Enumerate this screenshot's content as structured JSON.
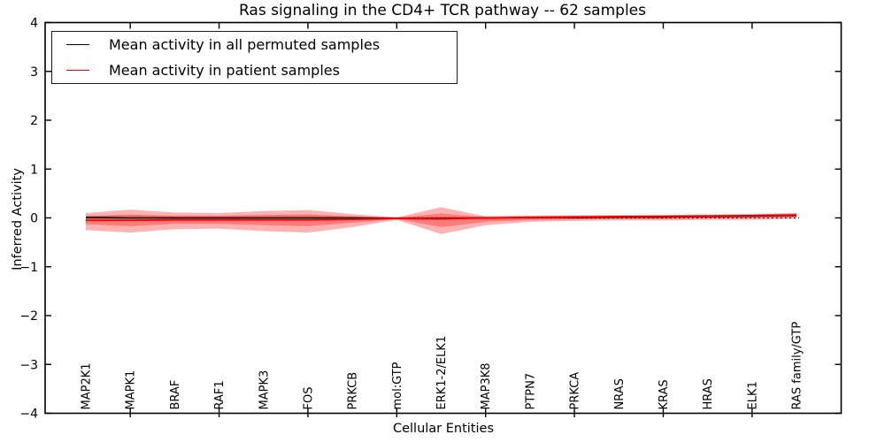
{
  "figure": {
    "title": "Ras signaling in the CD4+ TCR pathway -- 62 samples"
  },
  "legend": {
    "entries": [
      {
        "label": "Mean activity in all permuted samples",
        "color": "#000000"
      },
      {
        "label": "Mean activity in patient samples",
        "color": "#ff0000"
      }
    ]
  },
  "colors": {
    "permuted_line": "#000000",
    "patient_line": "#ff0000",
    "patient_band": "#ff0000",
    "permuted_band": "#000000",
    "zero_line": "#111111",
    "axis": "#000000"
  },
  "chart_data": {
    "type": "line",
    "title": "Ras signaling in the CD4+ TCR pathway -- 62 samples",
    "xlabel": "Cellular Entities",
    "ylabel": "Inferred Activity",
    "ylim": [
      -4,
      4
    ],
    "grid": false,
    "legend_position": "upper left",
    "zero_reference_line": "dotted",
    "y_ticks": [
      "4",
      "3",
      "2",
      "1",
      "0",
      "−1",
      "−2",
      "−3",
      "−4"
    ],
    "y_tick_values": [
      4,
      3,
      2,
      1,
      0,
      -1,
      -2,
      -3,
      -4
    ],
    "categories": [
      "MAP2K1",
      "MAPK1",
      "BRAF",
      "RAF1",
      "MAPK3",
      "FOS",
      "PRKCB",
      "mol:GTP",
      "ERK1-2/ELK1",
      "MAP3K8",
      "PTPN7",
      "PRKCA",
      "NRAS",
      "KRAS",
      "HRAS",
      "ELK1",
      "RAS family/GTP"
    ],
    "x_tick_mark_indices": [
      1,
      3,
      5,
      7,
      9,
      11,
      13,
      15
    ],
    "series": [
      {
        "name": "Mean activity in all permuted samples",
        "values": [
          0.01,
          0.0,
          0.0,
          0.0,
          0.0,
          0.0,
          0.0,
          -0.01,
          -0.01,
          0.0,
          0.01,
          0.01,
          0.02,
          0.02,
          0.03,
          0.04,
          0.05
        ],
        "band_upper": [
          0.06,
          0.05,
          0.05,
          0.05,
          0.05,
          0.05,
          0.04,
          0.02,
          0.03,
          0.04,
          0.05,
          0.05,
          0.06,
          0.06,
          0.07,
          0.08,
          0.09
        ],
        "band_lower": [
          -0.04,
          -0.05,
          -0.05,
          -0.05,
          -0.05,
          -0.05,
          -0.04,
          -0.04,
          -0.05,
          -0.04,
          -0.03,
          -0.03,
          -0.02,
          -0.02,
          -0.01,
          0.0,
          0.01
        ]
      },
      {
        "name": "Mean activity in patient samples",
        "values": [
          -0.05,
          -0.05,
          -0.04,
          -0.04,
          -0.04,
          -0.04,
          -0.03,
          -0.01,
          -0.02,
          0.0,
          0.01,
          0.02,
          0.03,
          0.03,
          0.04,
          0.05,
          0.06
        ],
        "band_outer_upper": [
          0.1,
          0.17,
          0.11,
          0.1,
          0.14,
          0.16,
          0.08,
          0.01,
          0.22,
          0.03,
          0.04,
          0.05,
          0.05,
          0.06,
          0.06,
          0.07,
          0.1
        ],
        "band_outer_lower": [
          -0.25,
          -0.3,
          -0.23,
          -0.22,
          -0.27,
          -0.3,
          -0.19,
          -0.04,
          -0.33,
          -0.15,
          -0.08,
          -0.06,
          -0.05,
          -0.05,
          -0.04,
          -0.04,
          -0.02
        ],
        "band_inner_upper": [
          0.03,
          0.07,
          0.04,
          0.04,
          0.06,
          0.07,
          0.03,
          0.0,
          0.09,
          0.01,
          0.02,
          0.03,
          0.03,
          0.04,
          0.04,
          0.05,
          0.08
        ],
        "band_inner_lower": [
          -0.13,
          -0.17,
          -0.12,
          -0.12,
          -0.15,
          -0.17,
          -0.1,
          -0.02,
          -0.19,
          -0.08,
          -0.04,
          -0.03,
          -0.02,
          -0.02,
          -0.01,
          -0.01,
          0.02
        ]
      }
    ]
  }
}
